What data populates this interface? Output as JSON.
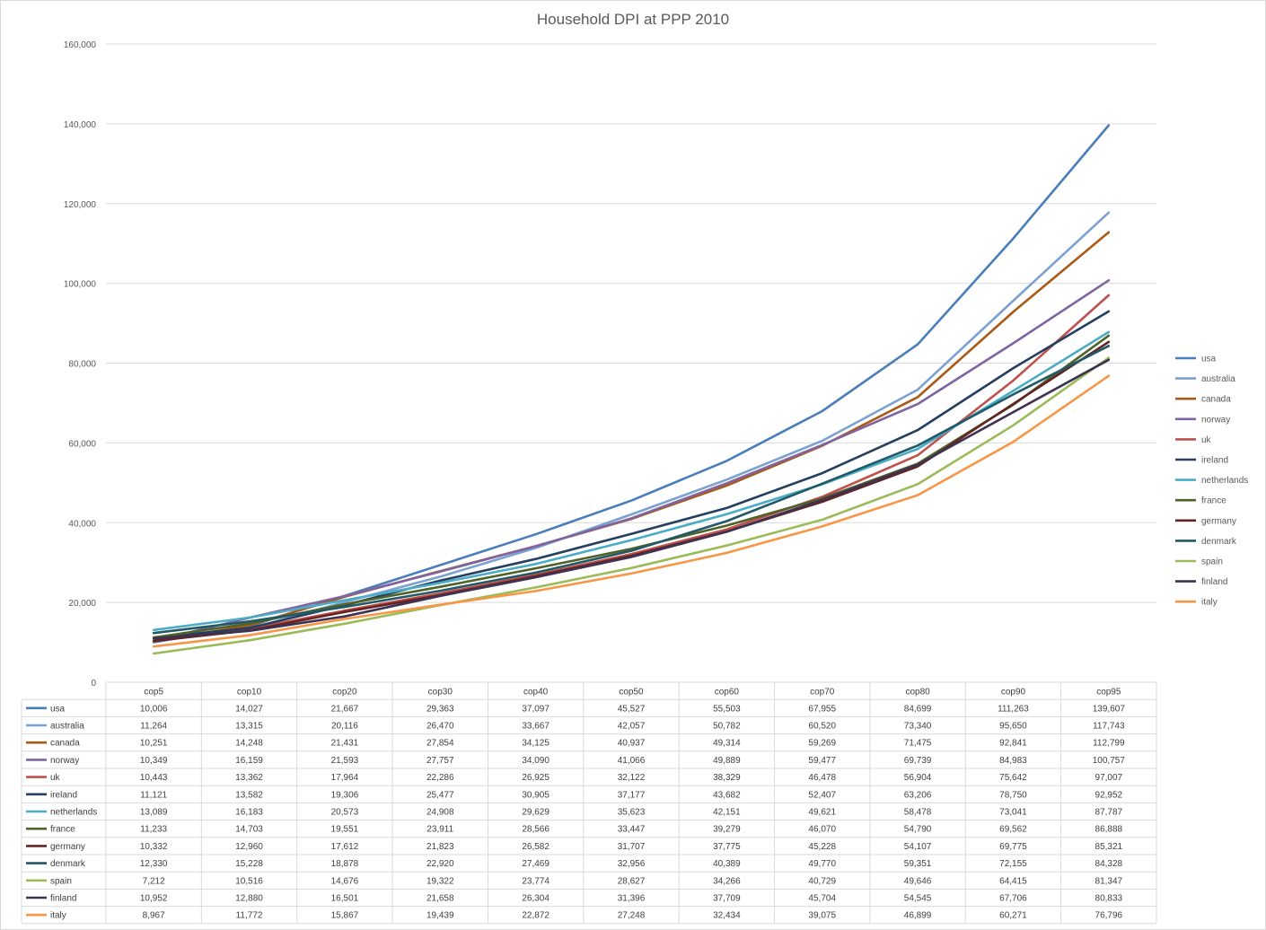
{
  "chart_data": {
    "type": "line",
    "title": "Household DPI at PPP 2010",
    "xlabel": "",
    "ylabel": "",
    "ylim": [
      0,
      160000
    ],
    "y_ticks": [
      "0",
      "20,000",
      "40,000",
      "60,000",
      "80,000",
      "100,000",
      "120,000",
      "140,000",
      "160,000"
    ],
    "grid": "horizontal",
    "legend_position": "right",
    "data_table": "below",
    "categories": [
      "cop5",
      "cop10",
      "cop20",
      "cop30",
      "cop40",
      "cop50",
      "cop60",
      "cop70",
      "cop80",
      "cop90",
      "cop95"
    ],
    "series": [
      {
        "name": "usa",
        "color": "#4a7ebb",
        "values": [
          10006,
          14027,
          21667,
          29363,
          37097,
          45527,
          55503,
          67955,
          84699,
          111263,
          139607
        ],
        "labels": [
          "10,006",
          "14,027",
          "21,667",
          "29,363",
          "37,097",
          "45,527",
          "55,503",
          "67,955",
          "84,699",
          "111,263",
          "139,607"
        ]
      },
      {
        "name": "australia",
        "color": "#7ba1d1",
        "values": [
          11264,
          13315,
          20116,
          26470,
          33667,
          42057,
          50782,
          60520,
          73340,
          95650,
          117743
        ],
        "labels": [
          "11,264",
          "13,315",
          "20,116",
          "26,470",
          "33,667",
          "42,057",
          "50,782",
          "60,520",
          "73,340",
          "95,650",
          "117,743"
        ]
      },
      {
        "name": "canada",
        "color": "#a85a16",
        "values": [
          10251,
          14248,
          21431,
          27854,
          34125,
          40937,
          49314,
          59269,
          71475,
          92841,
          112799
        ],
        "labels": [
          "10,251",
          "14,248",
          "21,431",
          "27,854",
          "34,125",
          "40,937",
          "49,314",
          "59,269",
          "71,475",
          "92,841",
          "112,799"
        ]
      },
      {
        "name": "norway",
        "color": "#8064a2",
        "values": [
          10349,
          16159,
          21593,
          27757,
          34090,
          41066,
          49889,
          59477,
          69739,
          84983,
          100757
        ],
        "labels": [
          "10,349",
          "16,159",
          "21,593",
          "27,757",
          "34,090",
          "41,066",
          "49,889",
          "59,477",
          "69,739",
          "84,983",
          "100,757"
        ]
      },
      {
        "name": "uk",
        "color": "#c0504d",
        "values": [
          10443,
          13362,
          17964,
          22286,
          26925,
          32122,
          38329,
          46478,
          56904,
          75642,
          97007
        ],
        "labels": [
          "10,443",
          "13,362",
          "17,964",
          "22,286",
          "26,925",
          "32,122",
          "38,329",
          "46,478",
          "56,904",
          "75,642",
          "97,007"
        ]
      },
      {
        "name": "ireland",
        "color": "#243f60",
        "values": [
          11121,
          13582,
          19306,
          25477,
          30905,
          37177,
          43682,
          52407,
          63206,
          78750,
          92952
        ],
        "labels": [
          "11,121",
          "13,582",
          "19,306",
          "25,477",
          "30,905",
          "37,177",
          "43,682",
          "52,407",
          "63,206",
          "78,750",
          "92,952"
        ]
      },
      {
        "name": "netherlands",
        "color": "#4bacc6",
        "values": [
          13089,
          16183,
          20573,
          24908,
          29629,
          35623,
          42151,
          49621,
          58478,
          73041,
          87787
        ],
        "labels": [
          "13,089",
          "16,183",
          "20,573",
          "24,908",
          "29,629",
          "35,623",
          "42,151",
          "49,621",
          "58,478",
          "73,041",
          "87,787"
        ]
      },
      {
        "name": "france",
        "color": "#4f6228",
        "values": [
          11233,
          14703,
          19551,
          23911,
          28566,
          33447,
          39279,
          46070,
          54790,
          69562,
          86888
        ],
        "labels": [
          "11,233",
          "14,703",
          "19,551",
          "23,911",
          "28,566",
          "33,447",
          "39,279",
          "46,070",
          "54,790",
          "69,562",
          "86,888"
        ]
      },
      {
        "name": "germany",
        "color": "#632523",
        "values": [
          10332,
          12960,
          17612,
          21823,
          26582,
          31707,
          37775,
          45228,
          54107,
          69775,
          85321
        ],
        "labels": [
          "10,332",
          "12,960",
          "17,612",
          "21,823",
          "26,582",
          "31,707",
          "37,775",
          "45,228",
          "54,107",
          "69,775",
          "85,321"
        ]
      },
      {
        "name": "denmark",
        "color": "#215968",
        "values": [
          12330,
          15228,
          18878,
          22920,
          27469,
          32956,
          40389,
          49770,
          59351,
          72155,
          84328
        ],
        "labels": [
          "12,330",
          "15,228",
          "18,878",
          "22,920",
          "27,469",
          "32,956",
          "40,389",
          "49,770",
          "59,351",
          "72,155",
          "84,328"
        ]
      },
      {
        "name": "spain",
        "color": "#9bbb59",
        "values": [
          7212,
          10516,
          14676,
          19322,
          23774,
          28627,
          34266,
          40729,
          49646,
          64415,
          81347
        ],
        "labels": [
          "7,212",
          "10,516",
          "14,676",
          "19,322",
          "23,774",
          "28,627",
          "34,266",
          "40,729",
          "49,646",
          "64,415",
          "81,347"
        ]
      },
      {
        "name": "finland",
        "color": "#3f3151",
        "values": [
          10952,
          12880,
          16501,
          21658,
          26304,
          31396,
          37709,
          45704,
          54545,
          67706,
          80833
        ],
        "labels": [
          "10,952",
          "12,880",
          "16,501",
          "21,658",
          "26,304",
          "31,396",
          "37,709",
          "45,704",
          "54,545",
          "67,706",
          "80,833"
        ]
      },
      {
        "name": "italy",
        "color": "#f79646",
        "values": [
          8967,
          11772,
          15867,
          19439,
          22872,
          27248,
          32434,
          39075,
          46899,
          60271,
          76796
        ],
        "labels": [
          "8,967",
          "11,772",
          "15,867",
          "19,439",
          "22,872",
          "27,248",
          "32,434",
          "39,075",
          "46,899",
          "60,271",
          "76,796"
        ]
      }
    ]
  }
}
